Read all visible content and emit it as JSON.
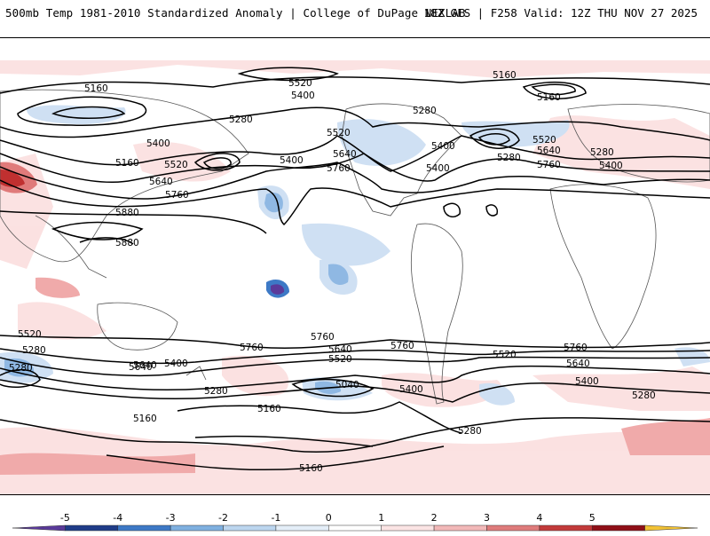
{
  "header": {
    "title": "500mb Temp 1981-2010 Standardized Anomaly | College of DuPage NEXLAB",
    "run_info": "18Z GFS | F258 Valid: 12Z THU NOV 27 2025"
  },
  "colorbar": {
    "ticks": [
      "-5",
      "-4",
      "-3",
      "-2",
      "-1",
      "0",
      "1",
      "2",
      "3",
      "4",
      "5"
    ],
    "colors": [
      "#5a3a9a",
      "#1f3c88",
      "#3d79c6",
      "#7fb0e0",
      "#bcd6ef",
      "#e4eef8",
      "#ffffff",
      "#fbe4e4",
      "#f2b8b8",
      "#df7b7b",
      "#c23a3a",
      "#8f0f17",
      "#f2c234"
    ]
  },
  "contour_labels": [
    "5160",
    "5520",
    "5400",
    "5280",
    "5160",
    "5280",
    "5400",
    "5520",
    "5640",
    "5760",
    "5400",
    "5160",
    "5520",
    "5640",
    "5760",
    "5880",
    "5880",
    "5280",
    "5400",
    "5520",
    "5640",
    "5760",
    "5280",
    "5160",
    "5400",
    "5520",
    "5640",
    "5760",
    "5280",
    "5400",
    "5760",
    "5280",
    "5640",
    "5400",
    "5520",
    "5760",
    "5640",
    "5520",
    "5040",
    "5400",
    "5160",
    "5280",
    "5160",
    "5280",
    "5640",
    "5400",
    "5280",
    "5760",
    "5160"
  ]
}
